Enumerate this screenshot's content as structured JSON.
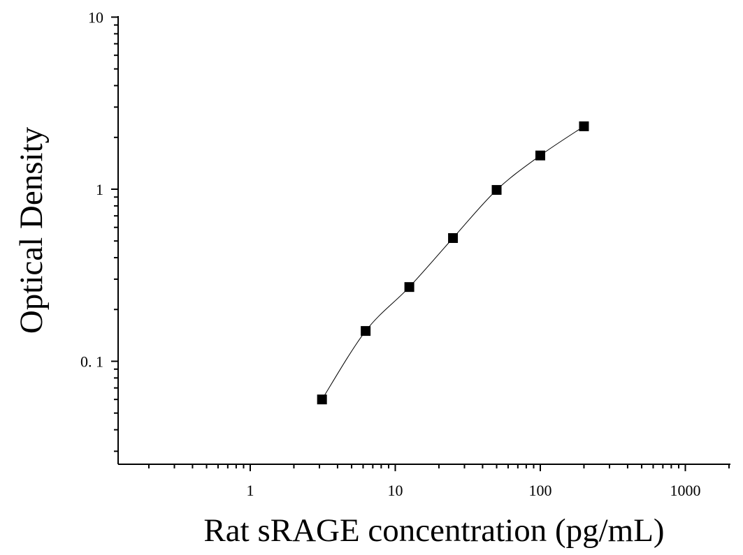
{
  "chart_data": {
    "type": "scatter",
    "xlabel": "Rat sRAGE concentration (pg/mL)",
    "ylabel": "Optical Density",
    "x_scale": "log",
    "y_scale": "log",
    "xlim": [
      0.15,
      1200
    ],
    "ylim": [
      0.025,
      10
    ],
    "x_ticks": [
      {
        "value": 1,
        "label": "1"
      },
      {
        "value": 10,
        "label": "10"
      },
      {
        "value": 100,
        "label": "100"
      },
      {
        "value": 1000,
        "label": "1000"
      }
    ],
    "y_ticks": [
      {
        "value": 0.1,
        "label": "0. 1"
      },
      {
        "value": 1,
        "label": "1"
      },
      {
        "value": 10,
        "label": "10"
      }
    ],
    "grid": false,
    "series": [
      {
        "marker": "square",
        "color": "#000000",
        "points": [
          {
            "x": 3.125,
            "y": 0.06
          },
          {
            "x": 6.25,
            "y": 0.15
          },
          {
            "x": 12.5,
            "y": 0.27
          },
          {
            "x": 25,
            "y": 0.52
          },
          {
            "x": 50,
            "y": 0.99
          },
          {
            "x": 100,
            "y": 1.57
          },
          {
            "x": 200,
            "y": 2.32
          }
        ],
        "fit_curve": true
      }
    ]
  }
}
